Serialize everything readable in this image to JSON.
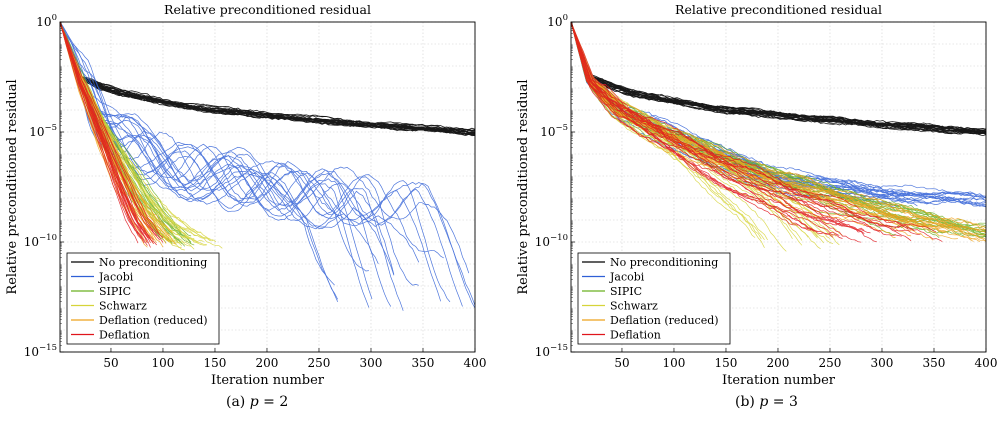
{
  "chart_data": [
    {
      "type": "line",
      "title": "Relative preconditioned residual",
      "xlabel": "Iteration number",
      "ylabel": "Relative preconditioned residual",
      "xlim": [
        1,
        400
      ],
      "ylim": [
        1e-15,
        1
      ],
      "yscale": "log",
      "grid": true,
      "legend_position": "bottom-left",
      "xticks": [
        50,
        100,
        150,
        200,
        250,
        300,
        350,
        400
      ],
      "yticks": [
        1e-15,
        1e-10,
        1e-05,
        1
      ],
      "ytick_labels": [
        {
          "base": "10",
          "exp": "−15"
        },
        {
          "base": "10",
          "exp": "−10"
        },
        {
          "base": "10",
          "exp": "−5"
        },
        {
          "base": "10",
          "exp": "0"
        }
      ],
      "caption": {
        "prefix": "(a) ",
        "symbol": "p",
        "suffix": " = 2"
      },
      "series": [
        {
          "name": "No preconditioning",
          "color": "#000000",
          "runs": 20,
          "x": [
            1,
            20,
            40,
            60,
            100,
            150,
            200,
            250,
            300,
            350,
            400
          ],
          "y": [
            1,
            0.003,
            0.0012,
            0.0006,
            0.00025,
            0.0001,
            6e-05,
            3.5e-05,
            2.2e-05,
            1.5e-05,
            1e-05
          ]
        },
        {
          "name": "Jacobi",
          "color": "#2f5fd6",
          "runs": 20,
          "x": [
            1,
            30,
            50,
            70,
            100,
            150,
            200,
            250,
            300,
            340
          ],
          "y": [
            1,
            0.0005,
            1e-05,
            2e-06,
            5e-07,
            1e-07,
            3e-08,
            1e-08,
            5e-09,
            1e-12
          ]
        },
        {
          "name": "SIPIC",
          "color": "#6ab020",
          "runs": 20,
          "x": [
            1,
            20,
            40,
            60,
            80,
            100,
            115
          ],
          "y": [
            1,
            0.003,
            2e-05,
            5e-07,
            1e-08,
            5e-10,
            1e-10
          ]
        },
        {
          "name": "Schwarz",
          "color": "#d6d43a",
          "runs": 20,
          "x": [
            1,
            20,
            40,
            60,
            80,
            100,
            120,
            135
          ],
          "y": [
            1,
            0.003,
            2e-05,
            5e-07,
            1e-08,
            1e-09,
            2e-10,
            1e-10
          ]
        },
        {
          "name": "Deflation (reduced)",
          "color": "#eea21c",
          "runs": 20,
          "x": [
            1,
            20,
            40,
            60,
            80,
            100
          ],
          "y": [
            1,
            0.002,
            1e-05,
            1e-07,
            2e-09,
            1e-10
          ]
        },
        {
          "name": "Deflation",
          "color": "#e0151c",
          "runs": 20,
          "x": [
            1,
            20,
            40,
            60,
            75,
            90
          ],
          "y": [
            1,
            0.002,
            1e-05,
            5e-08,
            1e-09,
            1e-10
          ]
        }
      ]
    },
    {
      "type": "line",
      "title": "Relative preconditioned residual",
      "xlabel": "Iteration number",
      "ylabel": "Relative preconditioned residual",
      "xlim": [
        1,
        400
      ],
      "ylim": [
        1e-15,
        1
      ],
      "yscale": "log",
      "grid": true,
      "legend_position": "bottom-left",
      "xticks": [
        50,
        100,
        150,
        200,
        250,
        300,
        350,
        400
      ],
      "yticks": [
        1e-15,
        1e-10,
        1e-05,
        1
      ],
      "ytick_labels": [
        {
          "base": "10",
          "exp": "−15"
        },
        {
          "base": "10",
          "exp": "−10"
        },
        {
          "base": "10",
          "exp": "−5"
        },
        {
          "base": "10",
          "exp": "0"
        }
      ],
      "caption": {
        "prefix": "(b) ",
        "symbol": "p",
        "suffix": " = 3"
      },
      "series": [
        {
          "name": "No preconditioning",
          "color": "#000000",
          "runs": 20,
          "x": [
            1,
            20,
            40,
            60,
            100,
            150,
            200,
            250,
            300,
            350,
            400
          ],
          "y": [
            1,
            0.003,
            0.0012,
            0.0006,
            0.00025,
            0.0001,
            6e-05,
            3.5e-05,
            2.2e-05,
            1.5e-05,
            1e-05
          ]
        },
        {
          "name": "Jacobi",
          "color": "#2f5fd6",
          "runs": 20,
          "x": [
            1,
            20,
            50,
            100,
            150,
            200,
            250,
            300,
            350,
            400
          ],
          "y": [
            1,
            0.002,
            0.0001,
            1e-05,
            1e-06,
            1e-07,
            4e-08,
            2e-08,
            1e-08,
            8e-09
          ]
        },
        {
          "name": "SIPIC",
          "color": "#6ab020",
          "runs": 20,
          "x": [
            1,
            20,
            50,
            100,
            150,
            200,
            250,
            300,
            350,
            400
          ],
          "y": [
            1,
            0.002,
            0.0001,
            8e-06,
            8e-07,
            1e-07,
            2e-08,
            4e-09,
            1e-09,
            3e-10
          ]
        },
        {
          "name": "Schwarz",
          "color": "#d6d43a",
          "runs": 20,
          "x": [
            1,
            20,
            50,
            100,
            150,
            200,
            225
          ],
          "y": [
            1,
            0.002,
            8e-05,
            4e-06,
            1e-07,
            2e-09,
            1e-10
          ]
        },
        {
          "name": "Deflation (reduced)",
          "color": "#eea21c",
          "runs": 20,
          "x": [
            1,
            20,
            50,
            100,
            150,
            200,
            250,
            300,
            350,
            400
          ],
          "y": [
            1,
            0.002,
            0.0001,
            6e-06,
            6e-07,
            8e-08,
            1.5e-08,
            3e-09,
            8e-10,
            2e-10
          ]
        },
        {
          "name": "Deflation",
          "color": "#e0151c",
          "runs": 20,
          "x": [
            1,
            20,
            50,
            100,
            150,
            200,
            250,
            300
          ],
          "y": [
            1,
            0.002,
            0.0001,
            4e-06,
            2e-07,
            1.5e-08,
            1.5e-09,
            2e-10
          ]
        }
      ]
    }
  ]
}
